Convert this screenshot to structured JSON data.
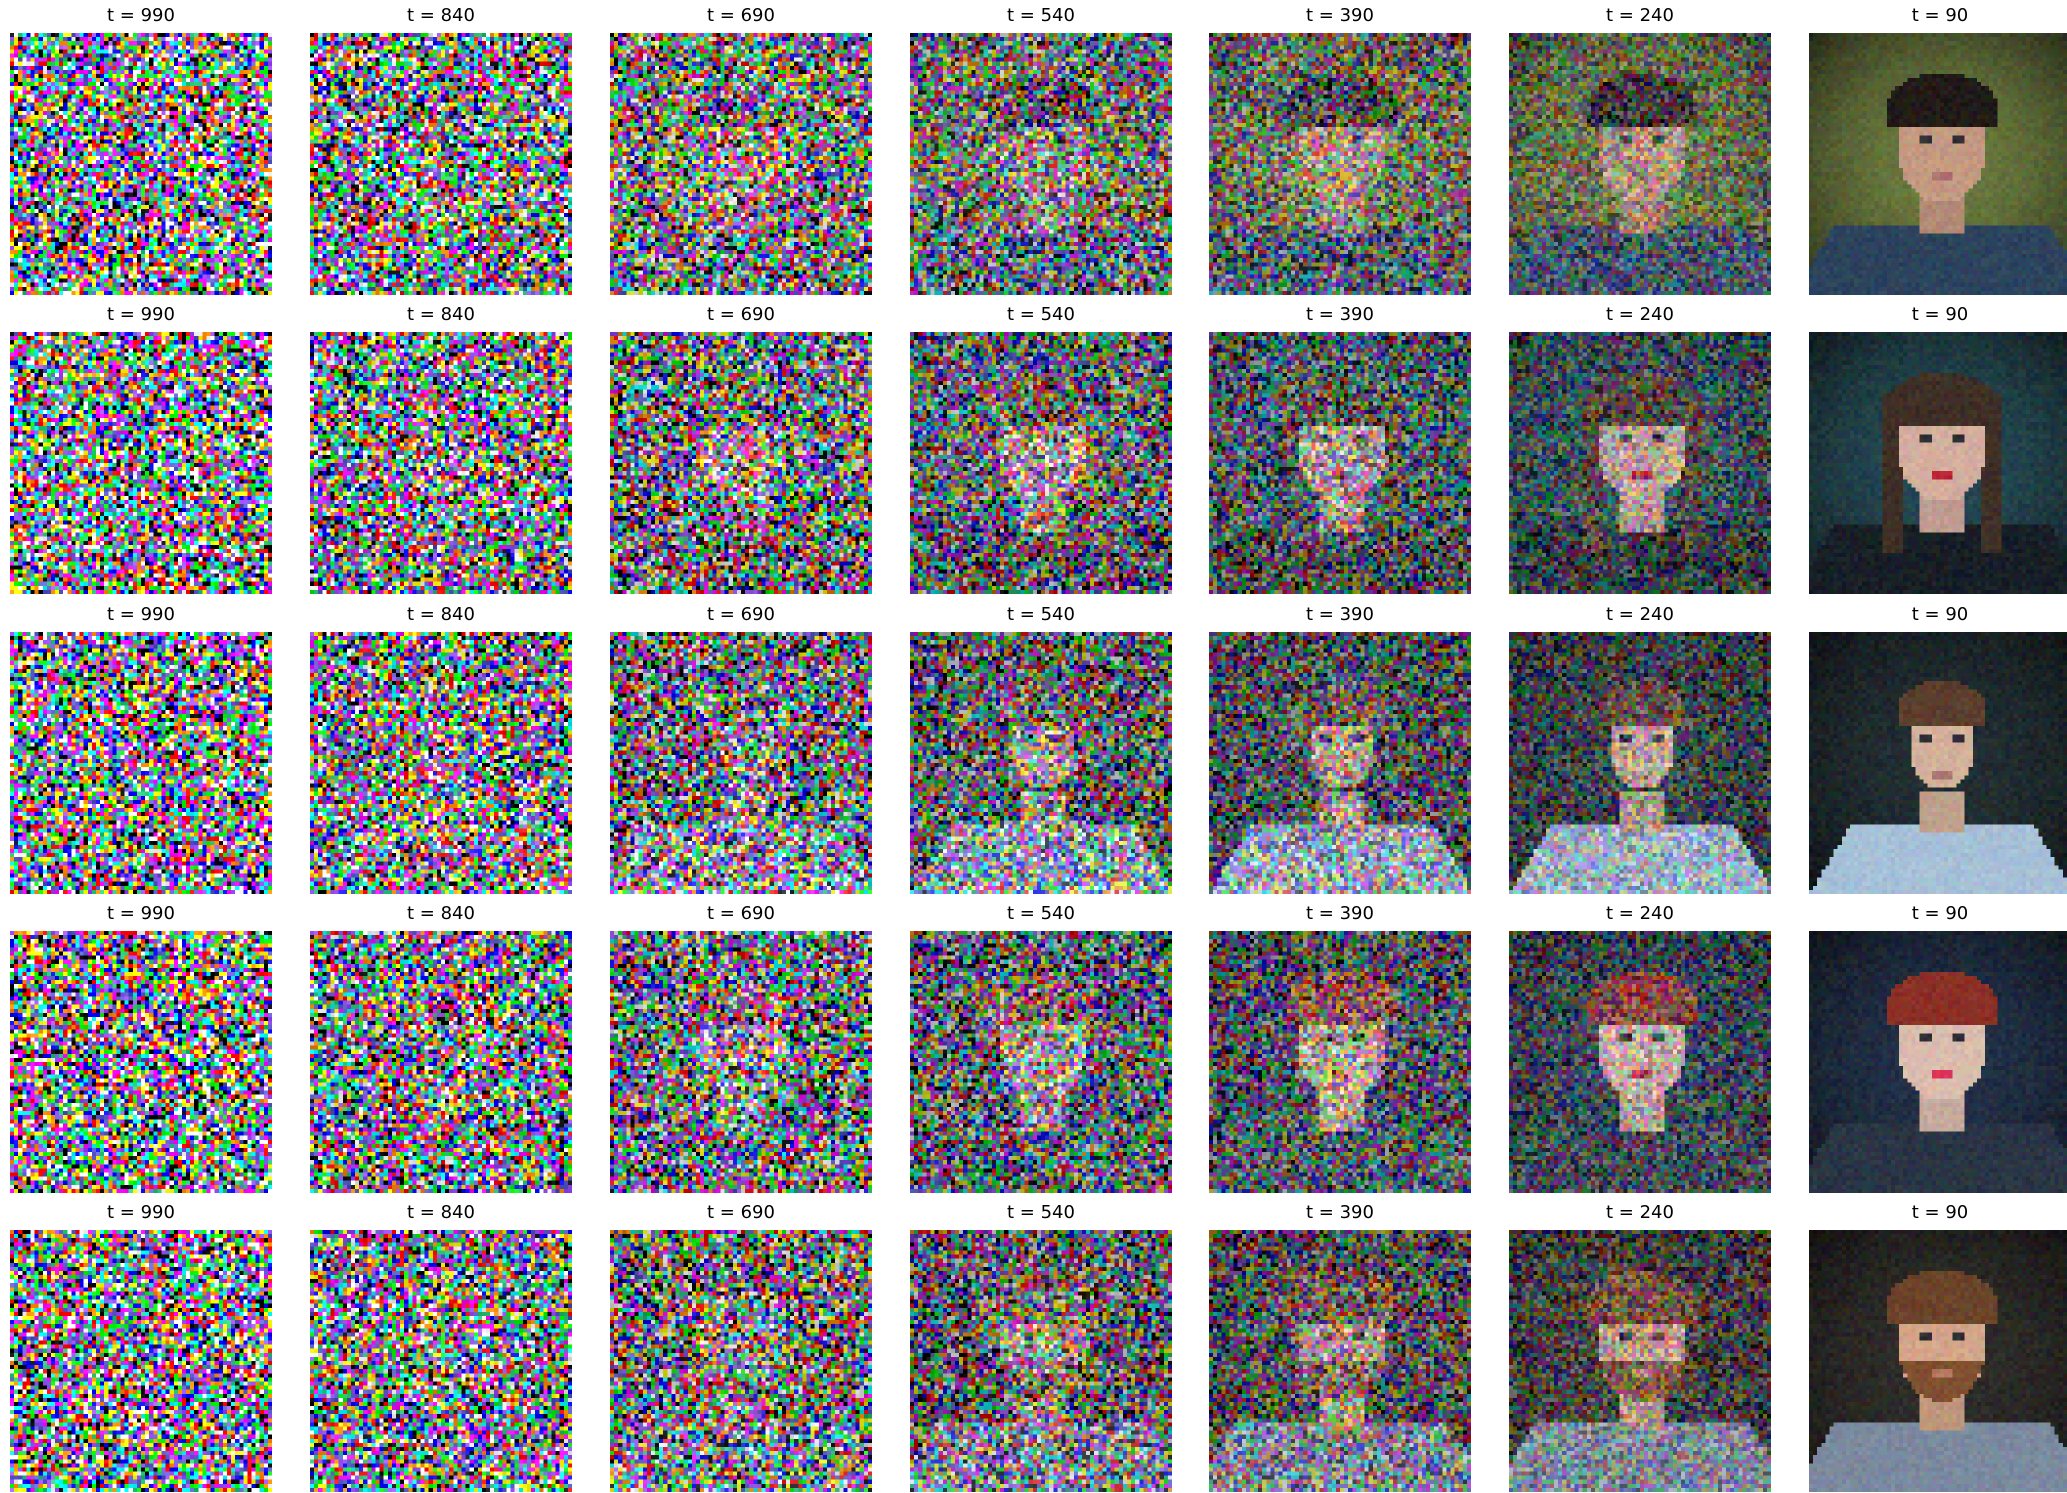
{
  "figure": {
    "timesteps": [
      "t = 990",
      "t = 840",
      "t = 690",
      "t = 540",
      "t = 390",
      "t = 240",
      "t = 90"
    ],
    "rows": [
      {
        "subject": "young man with black hair, dark jacket, green foliage background",
        "palette": {
          "background": "#6a7a3a",
          "skin": "#c89a80",
          "hair": "#1a1410",
          "clothing": "#26405a",
          "lips": "#b0706a"
        }
      },
      {
        "subject": "woman with long dark hair and red lips, dark teal background",
        "palette": {
          "background": "#1f4650",
          "skin": "#d8b0a0",
          "hair": "#3a2a20",
          "clothing": "#101820",
          "lips": "#b81c32"
        }
      },
      {
        "subject": "young man in light blue short-sleeve shirt, dark background",
        "palette": {
          "background": "#1c2a2e",
          "skin": "#d8b49c",
          "hair": "#5a3a28",
          "clothing": "#a8c4dc",
          "lips": "#b07870"
        }
      },
      {
        "subject": "woman with red updo hair and pink lips, dark blue background",
        "palette": {
          "background": "#1c2c44",
          "skin": "#e0c0b0",
          "hair": "#8a2a20",
          "clothing": "#243040",
          "lips": "#e02a58"
        }
      },
      {
        "subject": "bearded man with ginger beard in light blue shirt, dark vignette background",
        "palette": {
          "background": "#2a2824",
          "skin": "#d8a888",
          "hair": "#6a4024",
          "clothing": "#7a8aa0",
          "lips": "#b87860"
        }
      }
    ],
    "noise_levels": [
      1.0,
      0.9,
      0.78,
      0.64,
      0.5,
      0.34,
      0.06
    ]
  }
}
